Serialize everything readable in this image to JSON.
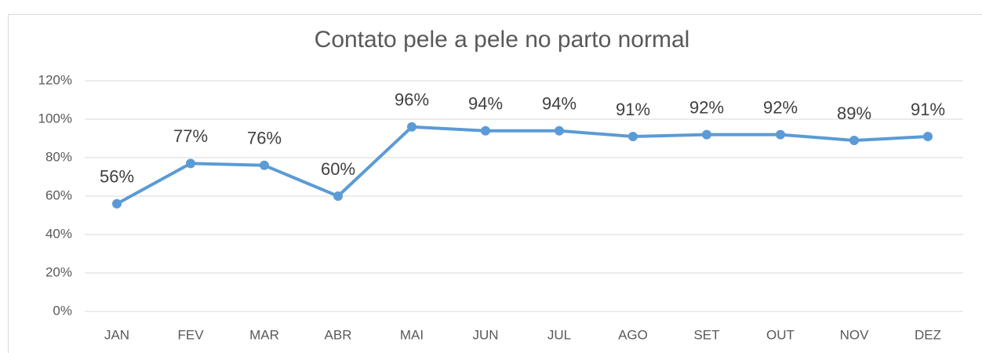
{
  "chart_data": {
    "type": "line",
    "title": "Contato pele a pele no parto normal",
    "categories": [
      "JAN",
      "FEV",
      "MAR",
      "ABR",
      "MAI",
      "JUN",
      "JUL",
      "AGO",
      "SET",
      "OUT",
      "NOV",
      "DEZ"
    ],
    "series": [
      {
        "name": "Contato pele a pele",
        "color": "#5b9bd5",
        "values": [
          56,
          77,
          76,
          60,
          96,
          94,
          94,
          91,
          92,
          92,
          89,
          91
        ],
        "value_labels": [
          "56%",
          "77%",
          "76%",
          "60%",
          "96%",
          "94%",
          "94%",
          "91%",
          "92%",
          "92%",
          "89%",
          "91%"
        ]
      }
    ],
    "ylim": [
      0,
      120
    ],
    "yticks": [
      {
        "value": 0,
        "label": "0%"
      },
      {
        "value": 20,
        "label": "20%"
      },
      {
        "value": 40,
        "label": "40%"
      },
      {
        "value": 60,
        "label": "60%"
      },
      {
        "value": 80,
        "label": "80%"
      },
      {
        "value": 100,
        "label": "100%"
      },
      {
        "value": 120,
        "label": "120%"
      }
    ],
    "grid": true
  }
}
